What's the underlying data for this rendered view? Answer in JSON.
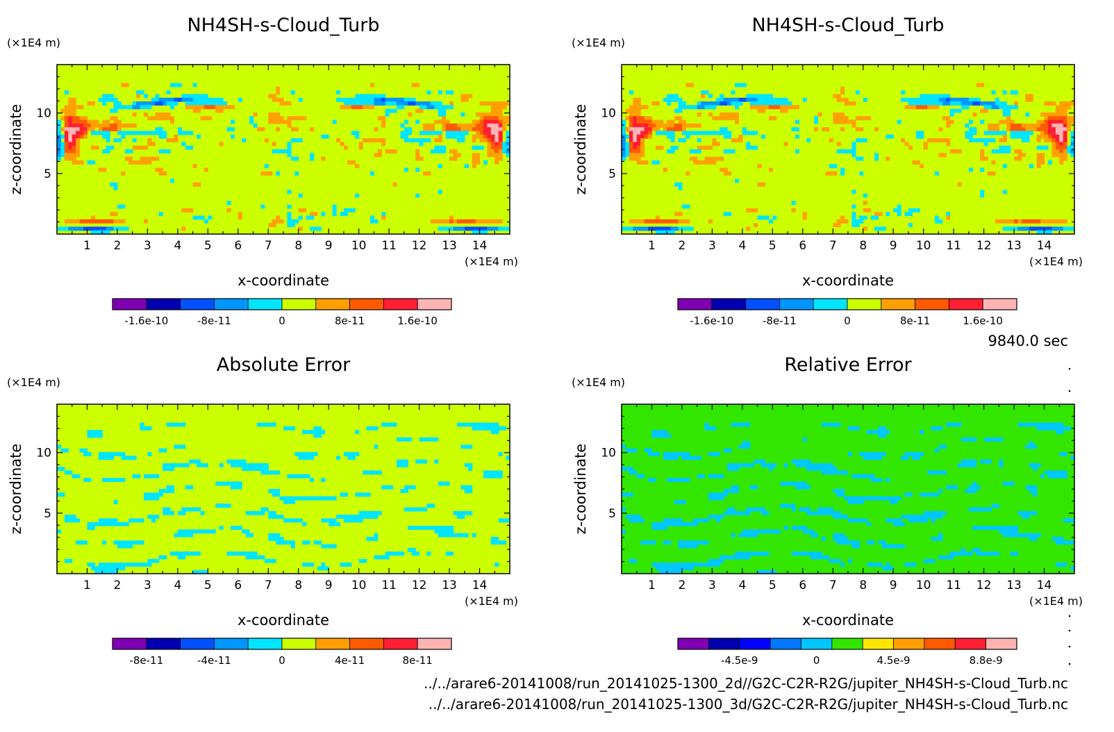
{
  "time_label": "9840.0 sec",
  "paths": [
    "../../arare6-20141008/run_20141025-1300_2d//G2C-C2R-R2G/jupiter_NH4SH-s-Cloud_Turb.nc",
    "../../arare6-20141008/run_20141025-1300_3d/G2C-C2R-R2G/jupiter_NH4SH-s-Cloud_Turb.nc"
  ],
  "chart_data": [
    {
      "type": "heatmap",
      "title": "NH4SH-s-Cloud_Turb",
      "xlabel": "x-coordinate",
      "ylabel": "z-coordinate",
      "x_unit": "(×1E4 m)",
      "y_unit": "(×1E4 m)",
      "xlim": [
        0,
        15
      ],
      "ylim": [
        0,
        14
      ],
      "xticks": [
        1,
        2,
        3,
        4,
        5,
        6,
        7,
        8,
        9,
        10,
        11,
        12,
        13,
        14
      ],
      "yticks": [
        5,
        10
      ],
      "background_color": "#ccff00",
      "field": "model-2d",
      "colorbar": {
        "colors": [
          "#7f00b2",
          "#0000b2",
          "#0050ff",
          "#0096ff",
          "#00e5ff",
          "#ccff00",
          "#ffa000",
          "#ff5a00",
          "#ff1e32",
          "#ffb4b4"
        ],
        "tick_labels": [
          "-1.6e-10",
          "-8e-11",
          "0",
          "8e-11",
          "1.6e-10"
        ]
      }
    },
    {
      "type": "heatmap",
      "title": "NH4SH-s-Cloud_Turb",
      "xlabel": "x-coordinate",
      "ylabel": "z-coordinate",
      "x_unit": "(×1E4 m)",
      "y_unit": "(×1E4 m)",
      "xlim": [
        0,
        15
      ],
      "ylim": [
        0,
        14
      ],
      "xticks": [
        1,
        2,
        3,
        4,
        5,
        6,
        7,
        8,
        9,
        10,
        11,
        12,
        13,
        14
      ],
      "yticks": [
        5,
        10
      ],
      "background_color": "#ccff00",
      "field": "model-3d",
      "colorbar": {
        "colors": [
          "#7f00b2",
          "#0000b2",
          "#0050ff",
          "#0096ff",
          "#00e5ff",
          "#ccff00",
          "#ffa000",
          "#ff5a00",
          "#ff1e32",
          "#ffb4b4"
        ],
        "tick_labels": [
          "-1.6e-10",
          "-8e-11",
          "0",
          "8e-11",
          "1.6e-10"
        ]
      }
    },
    {
      "type": "heatmap",
      "title": "Absolute Error",
      "xlabel": "x-coordinate",
      "ylabel": "z-coordinate",
      "x_unit": "(×1E4 m)",
      "y_unit": "(×1E4 m)",
      "xlim": [
        0,
        15
      ],
      "ylim": [
        0,
        14
      ],
      "xticks": [
        1,
        2,
        3,
        4,
        5,
        6,
        7,
        8,
        9,
        10,
        11,
        12,
        13,
        14
      ],
      "yticks": [
        5,
        10
      ],
      "background_color": "#ccff00",
      "field": "abs-error",
      "colorbar": {
        "colors": [
          "#7f00b2",
          "#0000b2",
          "#0050ff",
          "#0096ff",
          "#00e5ff",
          "#ccff00",
          "#ffa000",
          "#ff5a00",
          "#ff1e32",
          "#ffb4b4"
        ],
        "tick_labels": [
          "-8e-11",
          "-4e-11",
          "0",
          "4e-11",
          "8e-11"
        ]
      }
    },
    {
      "type": "heatmap",
      "title": "Relative Error",
      "xlabel": "x-coordinate",
      "ylabel": "z-coordinate",
      "x_unit": "(×1E4 m)",
      "y_unit": "(×1E4 m)",
      "xlim": [
        0,
        15
      ],
      "ylim": [
        0,
        14
      ],
      "xticks": [
        1,
        2,
        3,
        4,
        5,
        6,
        7,
        8,
        9,
        10,
        11,
        12,
        13,
        14
      ],
      "yticks": [
        5,
        10
      ],
      "background_color": "#33e600",
      "field": "rel-error",
      "colorbar": {
        "colors": [
          "#7f00b2",
          "#0000b2",
          "#0000ff",
          "#0078ff",
          "#00c8ff",
          "#33e600",
          "#ffe600",
          "#ffa000",
          "#ff5a00",
          "#ff1e32",
          "#ffb4b4"
        ],
        "tick_labels": [
          "-4.5e-9",
          "0",
          "4.5e-9",
          "8.8e-9"
        ]
      }
    }
  ]
}
